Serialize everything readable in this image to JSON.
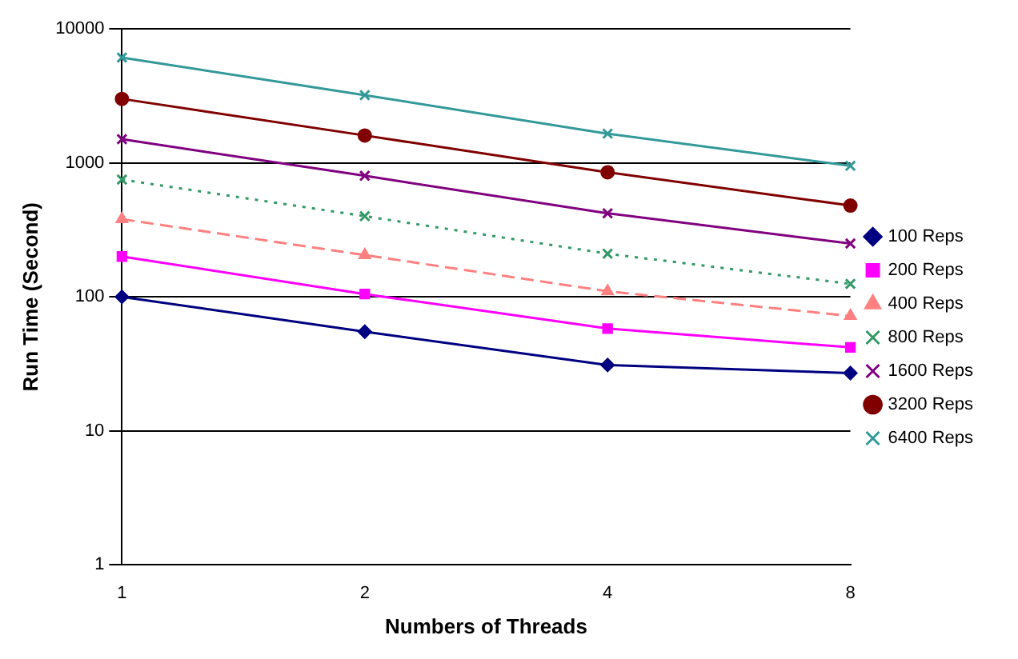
{
  "chart_data": {
    "type": "line",
    "xlabel": "Numbers of Threads",
    "ylabel": "Run Time (Second)",
    "categories": [
      "1",
      "2",
      "4",
      "8"
    ],
    "log": "y",
    "ylim": [
      1,
      10000
    ],
    "yticks": [
      1,
      10,
      100,
      1000,
      10000
    ],
    "grid": "y",
    "legend": "right",
    "series": [
      {
        "name": "100 Reps",
        "color": "#000080",
        "values": [
          100,
          55,
          31,
          27
        ],
        "marker": "diamond",
        "line_style": "solid"
      },
      {
        "name": "200 Reps",
        "color": "#ff00ff",
        "values": [
          200,
          105,
          58,
          42
        ],
        "marker": "square",
        "line_style": "solid"
      },
      {
        "name": "400 Reps",
        "color": "#ff8080",
        "values": [
          380,
          205,
          110,
          72
        ],
        "marker": "triangle",
        "line_style": "dashed"
      },
      {
        "name": "800 Reps",
        "color": "#339966",
        "values": [
          750,
          400,
          210,
          125
        ],
        "marker": "cross",
        "line_style": "dotted"
      },
      {
        "name": "1600 Reps",
        "color": "#800080",
        "values": [
          1500,
          800,
          420,
          250
        ],
        "marker": "cross",
        "line_style": "solid"
      },
      {
        "name": "3200 Reps",
        "color": "#800000",
        "values": [
          3000,
          1600,
          850,
          480
        ],
        "marker": "circle",
        "line_style": "solid"
      },
      {
        "name": "6400 Reps",
        "color": "#339999",
        "values": [
          6100,
          3200,
          1650,
          950
        ],
        "marker": "cross",
        "line_style": "solid"
      }
    ]
  }
}
